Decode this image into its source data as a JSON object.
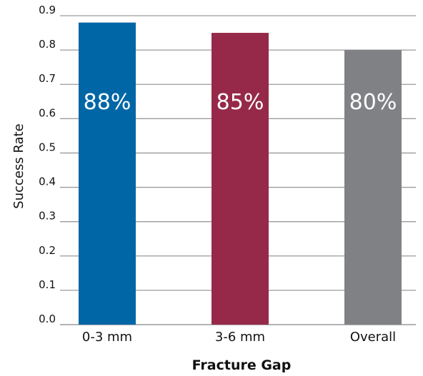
{
  "chart_data": {
    "type": "bar",
    "categories": [
      "0-3 mm",
      "3-6 mm",
      "Overall"
    ],
    "values": [
      0.88,
      0.85,
      0.8
    ],
    "data_labels": [
      "88%",
      "85%",
      "80%"
    ],
    "colors": [
      "#0066a6",
      "#96294a",
      "#808184"
    ],
    "grid_color": "#9a9a9a",
    "xlabel": "Fracture Gap",
    "ylabel": "Success Rate",
    "ylim": [
      0,
      0.9
    ],
    "yticks": [
      "0.0",
      "0.1",
      "0.2",
      "0.3",
      "0.4",
      "0.5",
      "0.6",
      "0.7",
      "0.8",
      "0.9"
    ],
    "grid": true
  }
}
